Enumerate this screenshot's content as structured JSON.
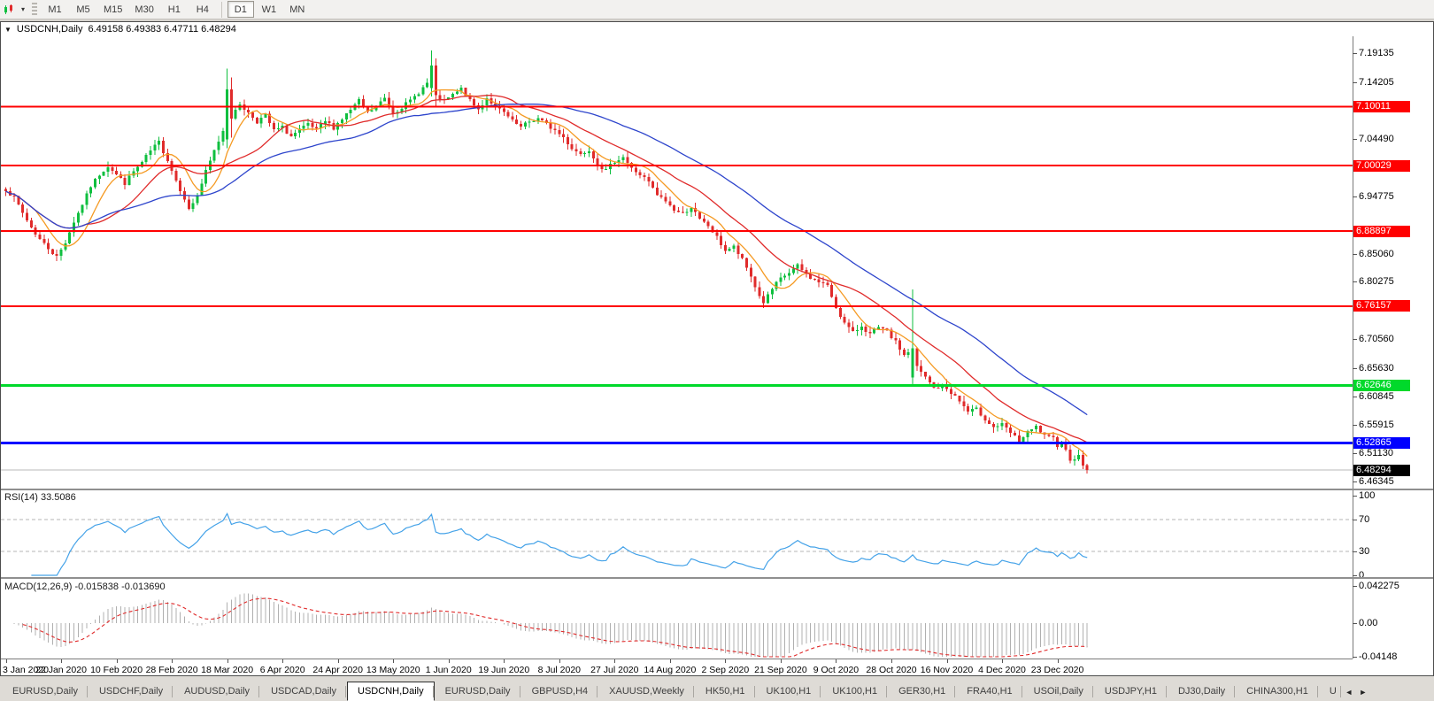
{
  "toolbar": {
    "chart_tools_caret": "▾",
    "timeframes": [
      "M1",
      "M5",
      "M15",
      "M30",
      "H1",
      "H4",
      "D1",
      "W1",
      "MN"
    ],
    "active_timeframe": "D1",
    "separator_before": "D1"
  },
  "chart": {
    "collapse_icon": "▼",
    "symbol_period": "USDCNH,Daily",
    "ohlc_text": "6.49158 6.49383 6.47711 6.48294"
  },
  "chart_data": {
    "type": "candlestick",
    "symbol": "USDCNH",
    "period": "Daily",
    "ohlc": {
      "open": 6.49158,
      "high": 6.49383,
      "low": 6.47711,
      "close": 6.48294
    },
    "price_axis": {
      "top": 7.2199,
      "bottom": 6.4515,
      "tick_labels": [
        "7.19135",
        "7.14205",
        "7.04490",
        "6.94775",
        "6.85060",
        "6.80275",
        "6.70560",
        "6.65630",
        "6.60845",
        "6.55915",
        "6.51130",
        "6.46345"
      ]
    },
    "levels": [
      {
        "price": 7.10011,
        "label": "7.10011",
        "color": "#FF0000",
        "width": 2
      },
      {
        "price": 7.00029,
        "label": "7.00029",
        "color": "#FF0000",
        "width": 2
      },
      {
        "price": 6.88897,
        "label": "6.88897",
        "color": "#FF0000",
        "width": 2
      },
      {
        "price": 6.76157,
        "label": "6.76157",
        "color": "#FF0000",
        "width": 2
      },
      {
        "price": 6.62646,
        "label": "6.62646",
        "color": "#00D92B",
        "width": 3
      },
      {
        "price": 6.52865,
        "label": "6.52865",
        "color": "#0000FF",
        "width": 3
      }
    ],
    "current_price": {
      "price": 6.48294,
      "label": "6.48294",
      "color": "#000000",
      "line_color": "#b8b8b8"
    },
    "x_tick_dates": [
      "3 Jan 2020",
      "22 Jan 2020",
      "10 Feb 2020",
      "28 Feb 2020",
      "18 Mar 2020",
      "6 Apr 2020",
      "24 Apr 2020",
      "13 May 2020",
      "1 Jun 2020",
      "19 Jun 2020",
      "8 Jul 2020",
      "27 Jul 2020",
      "14 Aug 2020",
      "2 Sep 2020",
      "21 Sep 2020",
      "9 Oct 2020",
      "28 Oct 2020",
      "16 Nov 2020",
      "4 Dec 2020",
      "23 Dec 2020"
    ],
    "candles": {
      "count": 255,
      "per_tick": 13,
      "close_anchors": [
        [
          0,
          6.96
        ],
        [
          2,
          6.945
        ],
        [
          4,
          6.92
        ],
        [
          6,
          6.895
        ],
        [
          8,
          6.875
        ],
        [
          10,
          6.86
        ],
        [
          12,
          6.845
        ],
        [
          14,
          6.87
        ],
        [
          16,
          6.905
        ],
        [
          18,
          6.935
        ],
        [
          20,
          6.965
        ],
        [
          22,
          6.985
        ],
        [
          24,
          7.0
        ],
        [
          26,
          6.985
        ],
        [
          28,
          6.97
        ],
        [
          30,
          6.99
        ],
        [
          32,
          7.005
        ],
        [
          34,
          7.025
        ],
        [
          36,
          7.04
        ],
        [
          38,
          7.01
        ],
        [
          40,
          6.975
        ],
        [
          42,
          6.945
        ],
        [
          43,
          6.925
        ],
        [
          45,
          6.95
        ],
        [
          47,
          6.99
        ],
        [
          49,
          7.025
        ],
        [
          51,
          7.06
        ],
        [
          52,
          7.13
        ],
        [
          53,
          7.08
        ],
        [
          55,
          7.105
        ],
        [
          57,
          7.09
        ],
        [
          59,
          7.075
        ],
        [
          61,
          7.085
        ],
        [
          63,
          7.06
        ],
        [
          65,
          7.065
        ],
        [
          67,
          7.05
        ],
        [
          69,
          7.06
        ],
        [
          71,
          7.07
        ],
        [
          73,
          7.06
        ],
        [
          75,
          7.075
        ],
        [
          77,
          7.065
        ],
        [
          79,
          7.08
        ],
        [
          81,
          7.095
        ],
        [
          83,
          7.11
        ],
        [
          85,
          7.09
        ],
        [
          87,
          7.1
        ],
        [
          89,
          7.115
        ],
        [
          91,
          7.09
        ],
        [
          93,
          7.1
        ],
        [
          95,
          7.11
        ],
        [
          97,
          7.125
        ],
        [
          99,
          7.14
        ],
        [
          100,
          7.17
        ],
        [
          101,
          7.12
        ],
        [
          103,
          7.11
        ],
        [
          105,
          7.12
        ],
        [
          107,
          7.13
        ],
        [
          109,
          7.11
        ],
        [
          111,
          7.095
        ],
        [
          113,
          7.115
        ],
        [
          115,
          7.1
        ],
        [
          117,
          7.09
        ],
        [
          119,
          7.075
        ],
        [
          121,
          7.065
        ],
        [
          123,
          7.075
        ],
        [
          125,
          7.08
        ],
        [
          127,
          7.07
        ],
        [
          129,
          7.06
        ],
        [
          131,
          7.048
        ],
        [
          133,
          7.03
        ],
        [
          135,
          7.02
        ],
        [
          137,
          7.028
        ],
        [
          139,
          7.002
        ],
        [
          141,
          6.992
        ],
        [
          143,
          7.008
        ],
        [
          145,
          7.015
        ],
        [
          147,
          6.995
        ],
        [
          149,
          6.985
        ],
        [
          151,
          6.972
        ],
        [
          153,
          6.95
        ],
        [
          155,
          6.94
        ],
        [
          157,
          6.925
        ],
        [
          159,
          6.918
        ],
        [
          161,
          6.93
        ],
        [
          163,
          6.908
        ],
        [
          165,
          6.898
        ],
        [
          167,
          6.878
        ],
        [
          169,
          6.856
        ],
        [
          171,
          6.862
        ],
        [
          173,
          6.84
        ],
        [
          175,
          6.812
        ],
        [
          177,
          6.778
        ],
        [
          178,
          6.768
        ],
        [
          180,
          6.79
        ],
        [
          182,
          6.808
        ],
        [
          184,
          6.818
        ],
        [
          186,
          6.83
        ],
        [
          188,
          6.815
        ],
        [
          190,
          6.806
        ],
        [
          192,
          6.8
        ],
        [
          193,
          6.795
        ],
        [
          195,
          6.76
        ],
        [
          197,
          6.732
        ],
        [
          199,
          6.716
        ],
        [
          201,
          6.728
        ],
        [
          203,
          6.714
        ],
        [
          205,
          6.724
        ],
        [
          207,
          6.718
        ],
        [
          209,
          6.7
        ],
        [
          211,
          6.678
        ],
        [
          213,
          6.69
        ],
        [
          214,
          6.658
        ],
        [
          216,
          6.64
        ],
        [
          218,
          6.622
        ],
        [
          220,
          6.626
        ],
        [
          222,
          6.615
        ],
        [
          224,
          6.6
        ],
        [
          226,
          6.582
        ],
        [
          228,
          6.586
        ],
        [
          230,
          6.57
        ],
        [
          232,
          6.556
        ],
        [
          234,
          6.56
        ],
        [
          236,
          6.546
        ],
        [
          238,
          6.532
        ],
        [
          240,
          6.546
        ],
        [
          242,
          6.556
        ],
        [
          244,
          6.54
        ],
        [
          246,
          6.536
        ],
        [
          247,
          6.526
        ],
        [
          248,
          6.531
        ],
        [
          249,
          6.516
        ],
        [
          250,
          6.502
        ],
        [
          252,
          6.506
        ],
        [
          253,
          6.492
        ],
        [
          254,
          6.483
        ]
      ],
      "overrides": {
        "52": {
          "o": 7.045,
          "c": 7.13,
          "h": 7.165,
          "l": 7.03
        },
        "53": {
          "o": 7.13,
          "c": 7.08,
          "h": 7.15,
          "l": 7.048
        },
        "100": {
          "o": 7.132,
          "c": 7.17,
          "h": 7.196,
          "l": 7.118
        },
        "101": {
          "o": 7.17,
          "c": 7.12,
          "h": 7.182,
          "l": 7.1
        },
        "213": {
          "o": 6.64,
          "c": 6.69,
          "h": 6.79,
          "l": 6.625
        },
        "254": {
          "o": 6.49158,
          "c": 6.48294,
          "h": 6.49383,
          "l": 6.47711
        }
      }
    },
    "colors": {
      "up": "#0FBF3F",
      "down": "#E02B2B"
    },
    "moving_averages": [
      {
        "period": 8,
        "color": "#F59A23"
      },
      {
        "period": 20,
        "color": "#E02B2B"
      },
      {
        "period": 45,
        "color": "#2E45CC"
      }
    ],
    "rsi": {
      "label": "RSI(14) 33.5086",
      "period": 14,
      "value": 33.5086,
      "axis_labels": [
        "100",
        "70",
        "30",
        "0"
      ],
      "axis_values": [
        100,
        70,
        30,
        0
      ],
      "overbought": 70,
      "oversold": 30,
      "color": "#44A2E8",
      "range": [
        0,
        100
      ]
    },
    "macd": {
      "label": "MACD(12,26,9) -0.015838 -0.013690",
      "fast": 12,
      "slow": 26,
      "signal": 9,
      "macd_value": -0.015838,
      "signal_value": -0.01369,
      "axis_labels": [
        "0.042275",
        "0.00",
        "-0.04148"
      ],
      "axis_values": [
        0.042275,
        0,
        -0.04148
      ],
      "hist_color": "#B0B0B0",
      "signal_color": "#E02B2B"
    }
  },
  "tabbar": {
    "tabs": [
      "EURUSD,Daily",
      "USDCHF,Daily",
      "AUDUSD,Daily",
      "USDCAD,Daily",
      "USDCNH,Daily",
      "EURUSD,Daily",
      "GBPUSD,H4",
      "XAUUSD,Weekly",
      "HK50,H1",
      "UK100,H1",
      "UK100,H1",
      "GER30,H1",
      "FRA40,H1",
      "USOil,Daily",
      "USDJPY,H1",
      "DJ30,Daily",
      "CHINA300,H1",
      "U"
    ],
    "active_index": 4,
    "scroll_left": "◄",
    "scroll_right": "►"
  }
}
